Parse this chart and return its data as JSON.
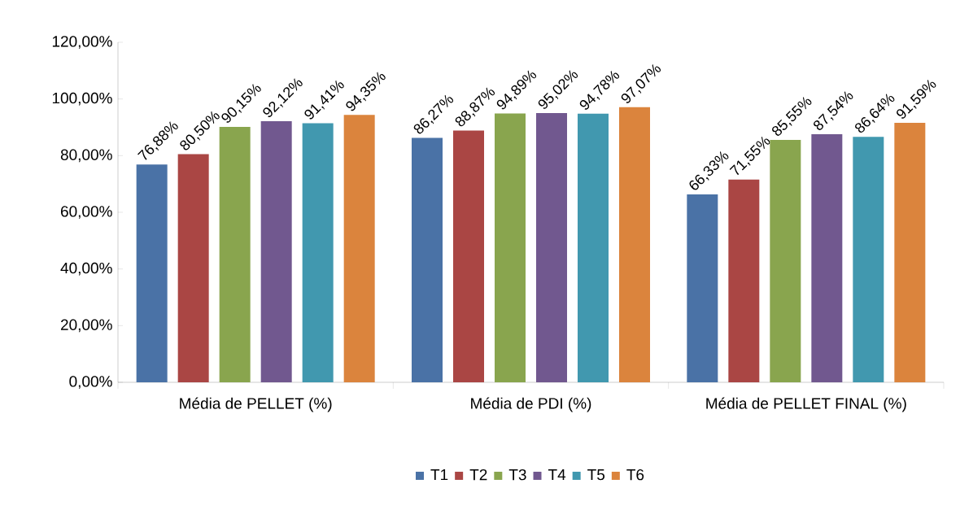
{
  "chart_data": {
    "type": "bar",
    "categories": [
      "Média de PELLET (%)",
      "Média de PDI (%)",
      "Média de PELLET FINAL (%)"
    ],
    "series": [
      {
        "name": "T1",
        "color": "#4a72a6",
        "values": [
          76.88,
          86.27,
          66.33
        ],
        "value_labels": [
          "76,88%",
          "86,27%",
          "66,33%"
        ]
      },
      {
        "name": "T2",
        "color": "#aa4644",
        "values": [
          80.5,
          88.87,
          71.55
        ],
        "value_labels": [
          "80,50%",
          "88,87%",
          "71,55%"
        ]
      },
      {
        "name": "T3",
        "color": "#89a54e",
        "values": [
          90.15,
          94.89,
          85.55
        ],
        "value_labels": [
          "90,15%",
          "94,89%",
          "85,55%"
        ]
      },
      {
        "name": "T4",
        "color": "#71588f",
        "values": [
          92.12,
          95.02,
          87.54
        ],
        "value_labels": [
          "92,12%",
          "95,02%",
          "87,54%"
        ]
      },
      {
        "name": "T5",
        "color": "#4198af",
        "values": [
          91.41,
          94.78,
          86.64
        ],
        "value_labels": [
          "91,41%",
          "94,78%",
          "86,64%"
        ]
      },
      {
        "name": "T6",
        "color": "#db843d",
        "values": [
          94.35,
          97.07,
          91.59
        ],
        "value_labels": [
          "94,35%",
          "97,07%",
          "91,59%"
        ]
      }
    ],
    "ylim": [
      0,
      120
    ],
    "yticks": [
      {
        "value": 0,
        "label": "0,00%"
      },
      {
        "value": 20,
        "label": "20,00%"
      },
      {
        "value": 40,
        "label": "40,00%"
      },
      {
        "value": 60,
        "label": "60,00%"
      },
      {
        "value": 80,
        "label": "80,00%"
      },
      {
        "value": 100,
        "label": "100,00%"
      },
      {
        "value": 120,
        "label": "120,00%"
      }
    ],
    "legend": "bottom",
    "grid": false
  }
}
